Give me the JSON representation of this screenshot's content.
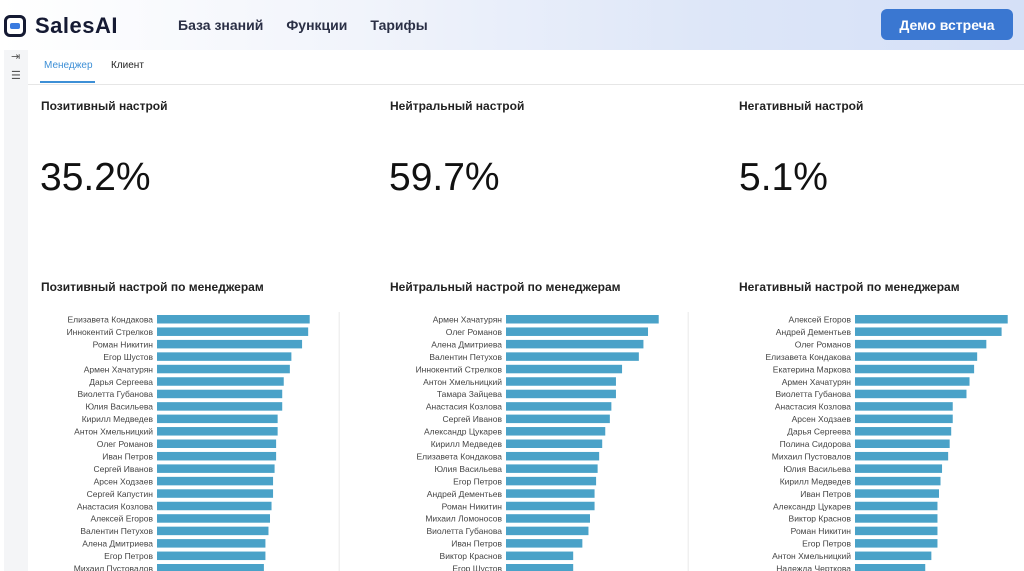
{
  "header": {
    "brand": "SalesAI",
    "nav": [
      "База знаний",
      "Функции",
      "Тарифы"
    ],
    "cta": "Демо встреча"
  },
  "tabs": [
    "Менеджер",
    "Клиент"
  ],
  "kpis": [
    {
      "title": "Позитивный настрой",
      "value": "35.2%"
    },
    {
      "title": "Нейтральный настрой",
      "value": "59.7%"
    },
    {
      "title": "Негативный настрой",
      "value": "5.1%"
    }
  ],
  "chart_data": [
    {
      "type": "bar",
      "orientation": "horizontal",
      "title": "Позитивный настрой по менеджерам",
      "xlim": [
        0,
        110
      ],
      "categories": [
        "Елизавета Кондакова",
        "Иннокентий Стрелков",
        "Роман Никитин",
        "Егор Шустов",
        "Армен Хачатурян",
        "Дарья Сергеева",
        "Виолетта Губанова",
        "Юлия Васильева",
        "Кирилл Медведев",
        "Антон Хмельницкий",
        "Олег Романов",
        "Иван Петров",
        "Сергей Иванов",
        "Арсен Ходзаев",
        "Сергей Капустин",
        "Анастасия Козлова",
        "Алексей Егоров",
        "Валентин Петухов",
        "Алена Дмитриева",
        "Егор Петров",
        "Михаил Пустовалов"
      ],
      "values": [
        100,
        99,
        95,
        88,
        87,
        83,
        82,
        82,
        79,
        79,
        78,
        78,
        77,
        76,
        76,
        75,
        74,
        73,
        71,
        71,
        70
      ]
    },
    {
      "type": "bar",
      "orientation": "horizontal",
      "title": "Нейтральный настрой по менеджерам",
      "xlim": [
        0,
        110
      ],
      "categories": [
        "Армен Хачатурян",
        "Олег Романов",
        "Алена Дмитриева",
        "Валентин Петухов",
        "Иннокентий Стрелков",
        "Антон Хмельницкий",
        "Тамара Зайцева",
        "Анастасия Козлова",
        "Сергей Иванов",
        "Александр Цукарев",
        "Кирилл Медведев",
        "Елизавета Кондакова",
        "Юлия Васильева",
        "Егор Петров",
        "Андрей Дементьев",
        "Роман Никитин",
        "Михаил Ломоносов",
        "Виолетта Губанова",
        "Иван Петров",
        "Виктор Краснов",
        "Егор Шустов"
      ],
      "values": [
        100,
        93,
        90,
        87,
        76,
        72,
        72,
        69,
        68,
        65,
        63,
        61,
        60,
        59,
        58,
        58,
        55,
        54,
        50,
        44,
        44
      ]
    },
    {
      "type": "bar",
      "orientation": "horizontal",
      "title": "Негативный настрой по менеджерам",
      "xlim": [
        0,
        110
      ],
      "categories": [
        "Алексей Егоров",
        "Андрей Дементьев",
        "Олег Романов",
        "Елизавета Кондакова",
        "Екатерина Маркова",
        "Армен Хачатурян",
        "Виолетта Губанова",
        "Анастасия Козлова",
        "Арсен Ходзаев",
        "Дарья Сергеева",
        "Полина Сидорова",
        "Михаил Пустовалов",
        "Юлия Васильева",
        "Кирилл Медведев",
        "Иван Петров",
        "Александр Цукарев",
        "Виктор Краснов",
        "Роман Никитин",
        "Егор Петров",
        "Антон Хмельницкий",
        "Надежда Черткова"
      ],
      "values": [
        100,
        96,
        86,
        80,
        78,
        75,
        73,
        64,
        64,
        63,
        62,
        61,
        57,
        56,
        55,
        54,
        54,
        54,
        54,
        50,
        46
      ]
    }
  ]
}
